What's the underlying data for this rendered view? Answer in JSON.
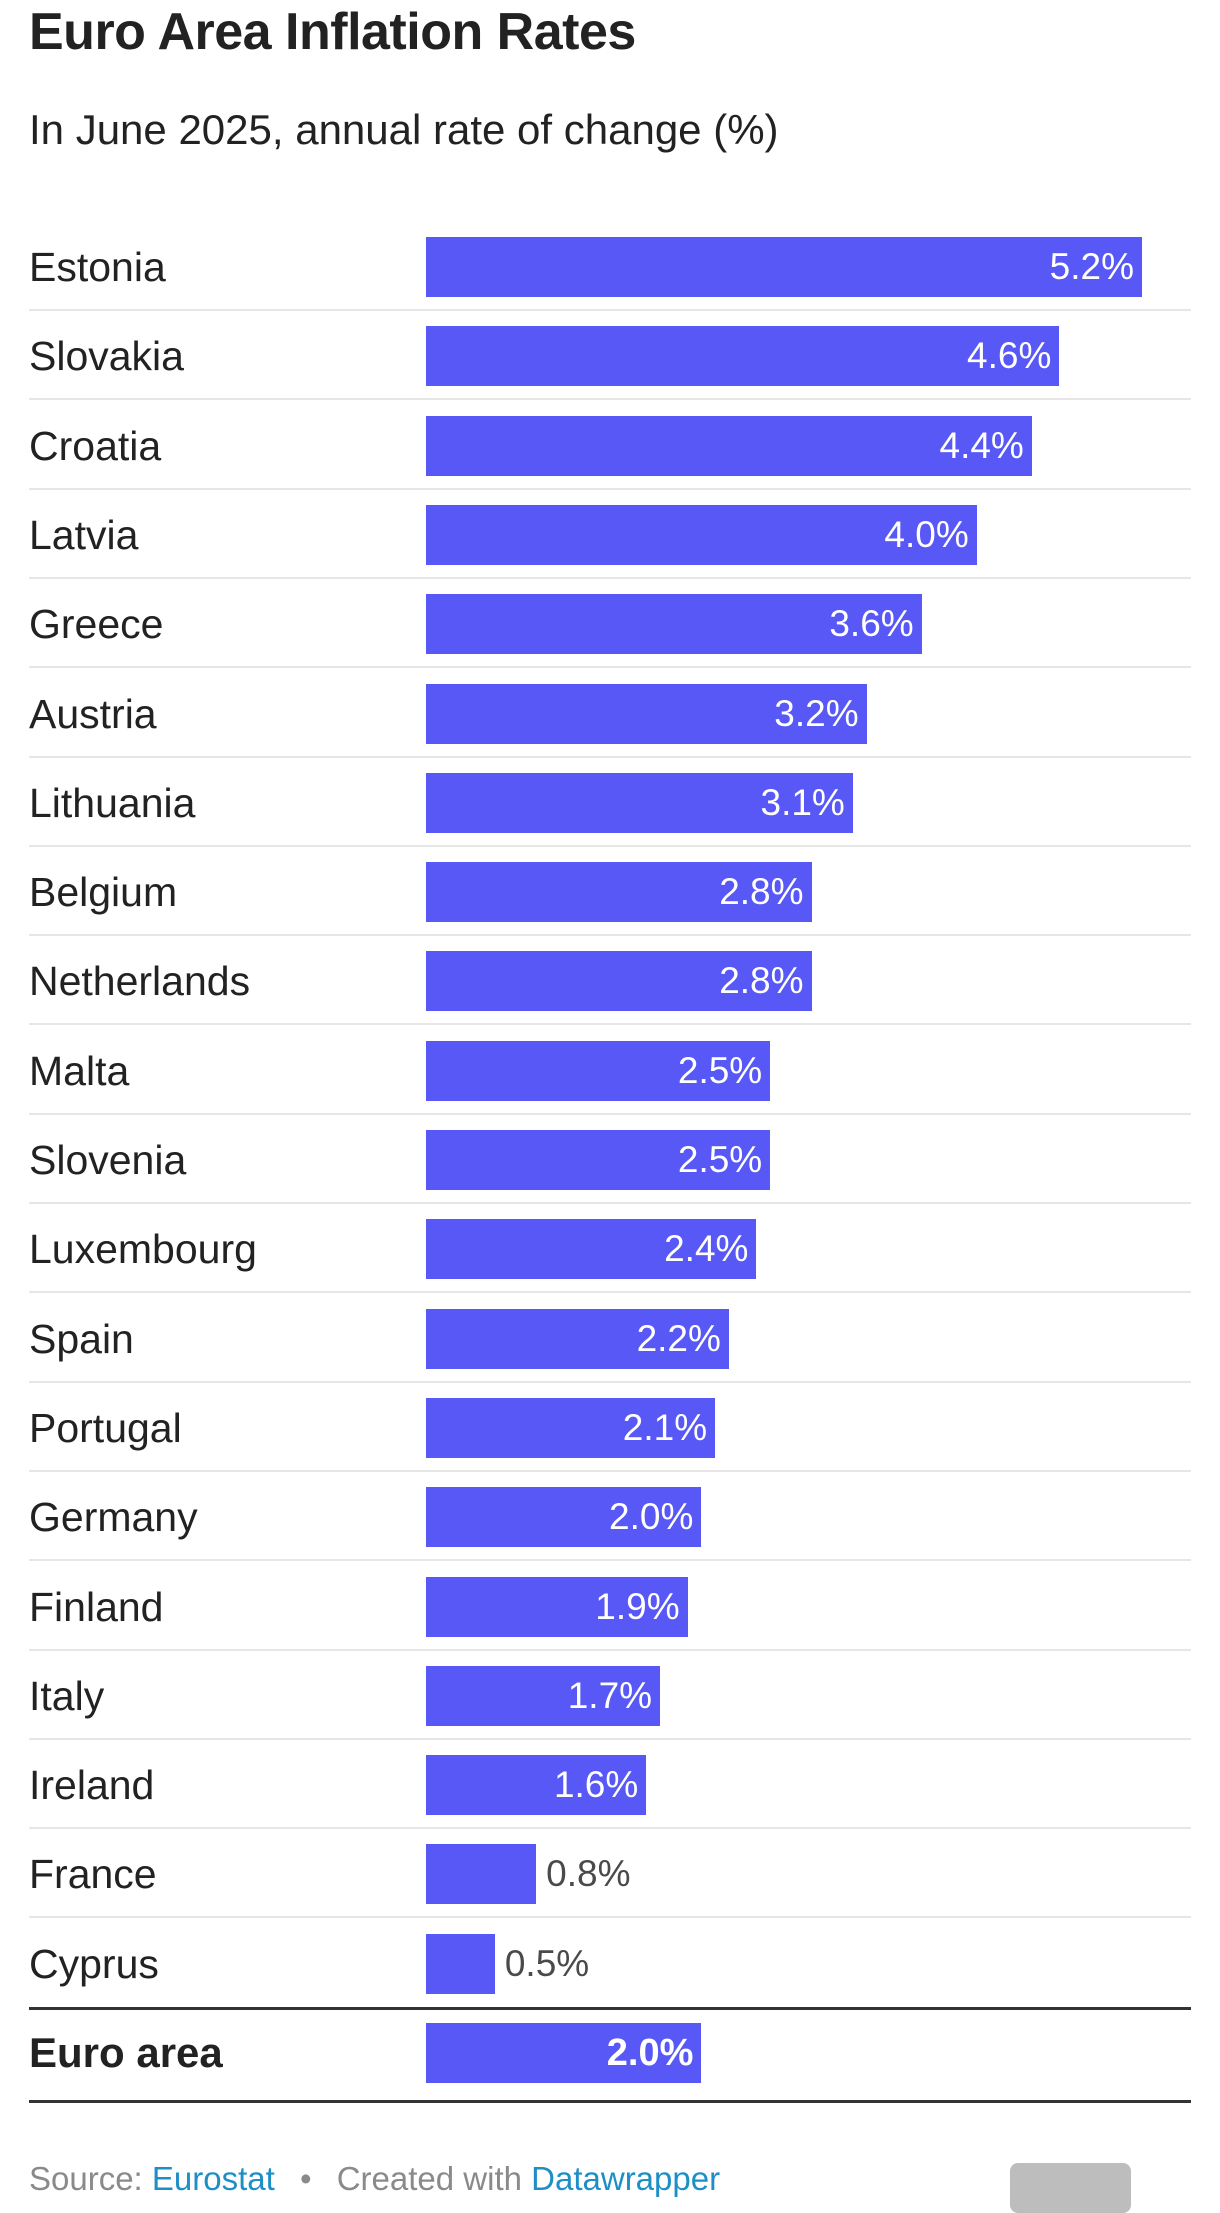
{
  "title": "Euro Area Inflation Rates",
  "subtitle": "In June 2025, annual rate of change (%)",
  "chart_data": {
    "type": "bar",
    "orientation": "horizontal",
    "title": "Euro Area Inflation Rates",
    "subtitle": "In June 2025, annual rate of change (%)",
    "categories": [
      "Estonia",
      "Slovakia",
      "Croatia",
      "Latvia",
      "Greece",
      "Austria",
      "Lithuania",
      "Belgium",
      "Netherlands",
      "Malta",
      "Slovenia",
      "Luxembourg",
      "Spain",
      "Portugal",
      "Germany",
      "Finland",
      "Italy",
      "Ireland",
      "France",
      "Cyprus"
    ],
    "values": [
      5.2,
      4.6,
      4.4,
      4.0,
      3.6,
      3.2,
      3.1,
      2.8,
      2.8,
      2.5,
      2.5,
      2.4,
      2.2,
      2.1,
      2.0,
      1.9,
      1.7,
      1.6,
      0.8,
      0.5
    ],
    "value_labels": [
      "5.2%",
      "4.6%",
      "4.4%",
      "4.0%",
      "3.6%",
      "3.2%",
      "3.1%",
      "2.8%",
      "2.8%",
      "2.5%",
      "2.5%",
      "2.4%",
      "2.2%",
      "2.1%",
      "2.0%",
      "1.9%",
      "1.7%",
      "1.6%",
      "0.8%",
      "0.5%"
    ],
    "total": {
      "label": "Euro area",
      "value": 2.0,
      "value_label": "2.0%"
    },
    "xlim": [
      0,
      5.2
    ],
    "bar_color": "#5858f6",
    "grid": false,
    "legend": "none"
  },
  "footer": {
    "source_prefix": "Source:",
    "source_link": "Eurostat",
    "separator": "•",
    "created_prefix": "Created with",
    "created_link": "Datawrapper"
  },
  "colors": {
    "bar": "#5858f6",
    "link": "#1e8fc6",
    "footer_text": "#8a8a8a"
  }
}
